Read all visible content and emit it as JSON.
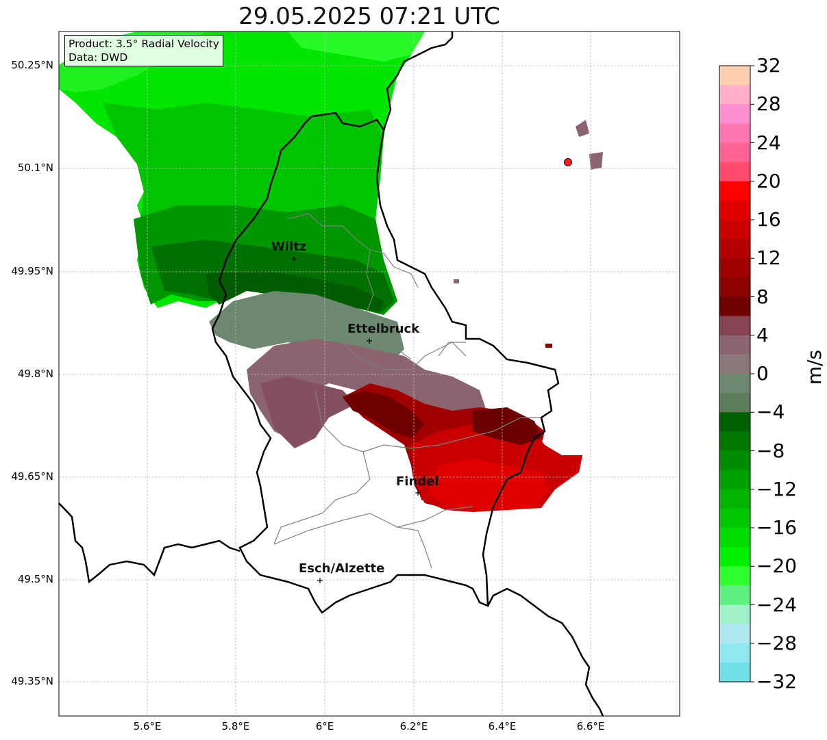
{
  "title": "29.05.2025 07:21 UTC",
  "info": {
    "product": "Product: 3.5° Radial Velocity",
    "data": "Data: DWD"
  },
  "lat_labels": [
    "50.25°N",
    "50.1°N",
    "49.95°N",
    "49.8°N",
    "49.65°N",
    "49.5°N",
    "49.35°N"
  ],
  "lon_labels": [
    "5.6°E",
    "5.8°E",
    "6°E",
    "6.2°E",
    "6.4°E",
    "6.6°E"
  ],
  "cities": [
    {
      "name": "Wiltz"
    },
    {
      "name": "Ettelbruck"
    },
    {
      "name": "Findel"
    },
    {
      "name": "Esch/Alzette"
    }
  ],
  "colorbar": {
    "unit": "m/s",
    "ticks": [
      "32",
      "28",
      "24",
      "20",
      "16",
      "12",
      "8",
      "4",
      "0",
      "−4",
      "−8",
      "−12",
      "−16",
      "−20",
      "−24",
      "−28",
      "−32"
    ],
    "range": [
      -32,
      32
    ],
    "colors_top_to_bottom": [
      "#ffd0b0",
      "#ffb0c8",
      "#ff90d0",
      "#ff78b4",
      "#ff6494",
      "#ff4c6c",
      "#ff0000",
      "#e00000",
      "#cc0000",
      "#b40000",
      "#a00000",
      "#8c0000",
      "#700000",
      "#844450",
      "#8c6470",
      "#8c7878",
      "#6c8870",
      "#5c7c5c",
      "#006000",
      "#007800",
      "#008c00",
      "#00a000",
      "#00b400",
      "#00c800",
      "#00dc00",
      "#00f000",
      "#30ff30",
      "#60f080",
      "#a0f0c8",
      "#b0e8f0",
      "#90e8f0",
      "#70e0e8"
    ]
  },
  "map": {
    "extent_lon": [
      5.4,
      6.8
    ],
    "extent_lat": [
      49.3,
      50.3
    ],
    "projection": "PlateCarree",
    "gridlines": true,
    "radar_site": {
      "symbol": "red-circle-marker"
    }
  }
}
